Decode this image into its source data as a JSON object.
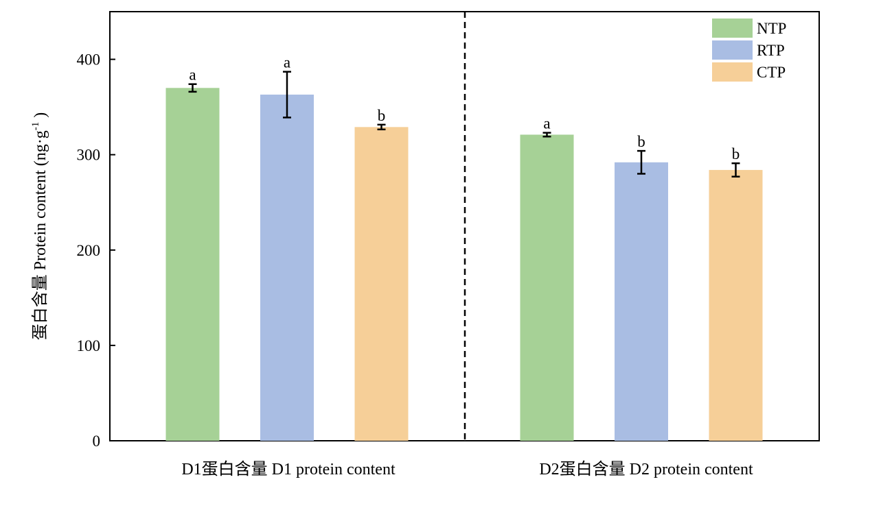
{
  "chart_data": {
    "type": "bar",
    "title": "",
    "ylabel": "蛋白含量 Protein content (ng·g",
    "ylabel_sup": "-1",
    "ylabel_end": ")",
    "ylim": [
      0,
      450
    ],
    "yticks": [
      0,
      100,
      200,
      300,
      400
    ],
    "grid": false,
    "legend_position": "top-right",
    "categories": [
      "D1蛋白含量  D1 protein content",
      "D2蛋白含量 D2 protein content"
    ],
    "series": [
      {
        "name": "NTP",
        "color": "#a6d196",
        "values": [
          370,
          321
        ],
        "errors": [
          4,
          2
        ],
        "letters": [
          "a",
          "a"
        ]
      },
      {
        "name": "RTP",
        "color": "#a9bde3",
        "values": [
          363,
          292
        ],
        "errors": [
          24,
          12
        ],
        "letters": [
          "a",
          "b"
        ]
      },
      {
        "name": "CTP",
        "color": "#f6cf98",
        "values": [
          329,
          284
        ],
        "errors": [
          2.5,
          7
        ],
        "letters": [
          "b",
          "b"
        ]
      }
    ]
  }
}
